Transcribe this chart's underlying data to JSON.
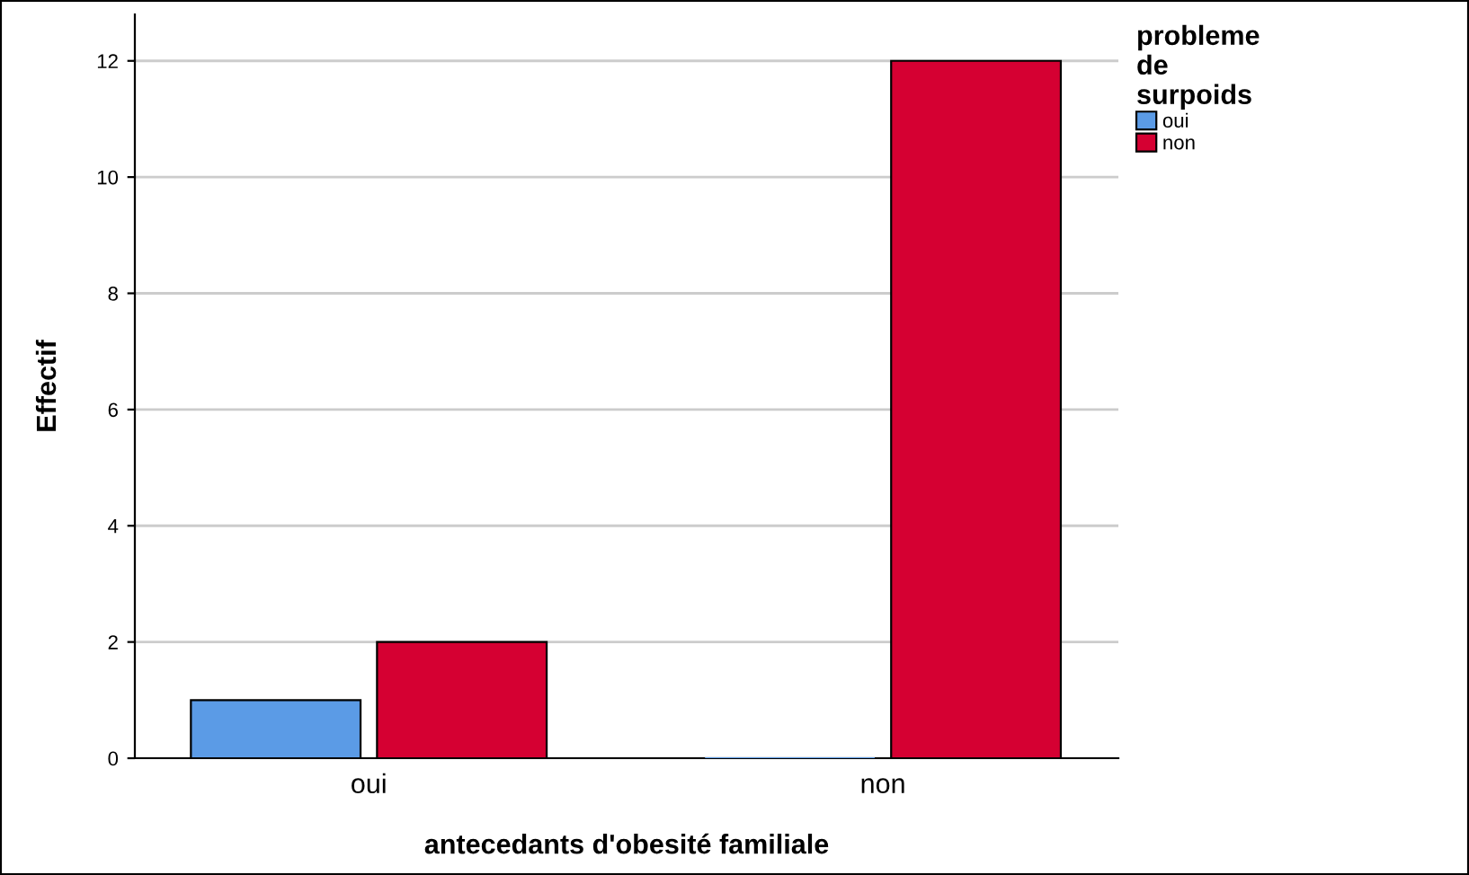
{
  "chart_data": {
    "type": "bar",
    "xlabel": "antecedants d'obesité familiale",
    "ylabel": "Effectif",
    "legend_title": "probleme\nde\nsurpoids",
    "categories": [
      "oui",
      "non"
    ],
    "series": [
      {
        "name": "oui",
        "color": "#5b9be6",
        "values": [
          1,
          0
        ]
      },
      {
        "name": "non",
        "color": "#d50032",
        "values": [
          2,
          12
        ]
      }
    ],
    "ylim": [
      0,
      12.8
    ],
    "yticks": [
      0,
      2,
      4,
      6,
      8,
      10,
      12
    ],
    "grid": "y",
    "legend": "top right"
  }
}
